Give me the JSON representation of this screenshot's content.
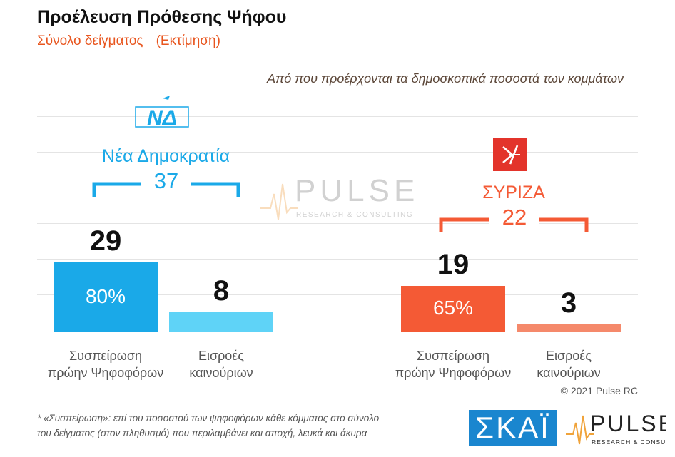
{
  "header": {
    "title": "Προέλευση Πρόθεσης Ψήφου",
    "subtitle_part1": "Σύνολο δείγματος",
    "subtitle_part2": "(Εκτίμηση)",
    "question": "Από που προέρχονται τα δημοσκοπικά ποσοστά των κομμάτων"
  },
  "parties": [
    {
      "name": "Νέα Δημοκρατία",
      "logo_text": "ΝΔ",
      "logo_icon": "nd-logo-icon",
      "total": "37",
      "color": "#1aa9e8",
      "light_color": "#5fd3f7"
    },
    {
      "name": "ΣΥΡΙΖΑ",
      "logo_icon": "syriza-logo-icon",
      "total": "22",
      "color": "#f45a35",
      "light_color": "#f5896b"
    }
  ],
  "chart_data": {
    "type": "bar",
    "categories": [
      "Συσπείρωση πρώην Ψηφοφόρων",
      "Εισροές καινούριων"
    ],
    "category_lines": [
      [
        "Συσπείρωση",
        "πρώην Ψηφοφόρων"
      ],
      [
        "Εισροές",
        "καινούριων"
      ]
    ],
    "groups": [
      {
        "party": "Νέα Δημοκρατία",
        "values": [
          29,
          8
        ],
        "inner_labels": [
          "80%",
          ""
        ]
      },
      {
        "party": "ΣΥΡΙΖΑ",
        "values": [
          19,
          3
        ],
        "inner_labels": [
          "65%",
          ""
        ]
      }
    ],
    "ylim": [
      0,
      37
    ],
    "grid": true
  },
  "watermark": {
    "brand": "PULSE",
    "tagline": "RESEARCH & CONSULTING"
  },
  "copyright": "© 2021 Pulse RC",
  "footnote": {
    "line1": "* «Συσπείρωση»: επί του ποσοστού των ψηφοφόρων κάθε κόμματος στο σύνολο",
    "line2": "του δείγματος (στον πληθυσμό) που περιλαμβάνει και αποχή, λευκά και άκυρα"
  },
  "logos": {
    "skai": "ΣΚΑΪ",
    "pulse": "PULSE",
    "pulse_tagline": "RESEARCH & CONSULTING"
  }
}
